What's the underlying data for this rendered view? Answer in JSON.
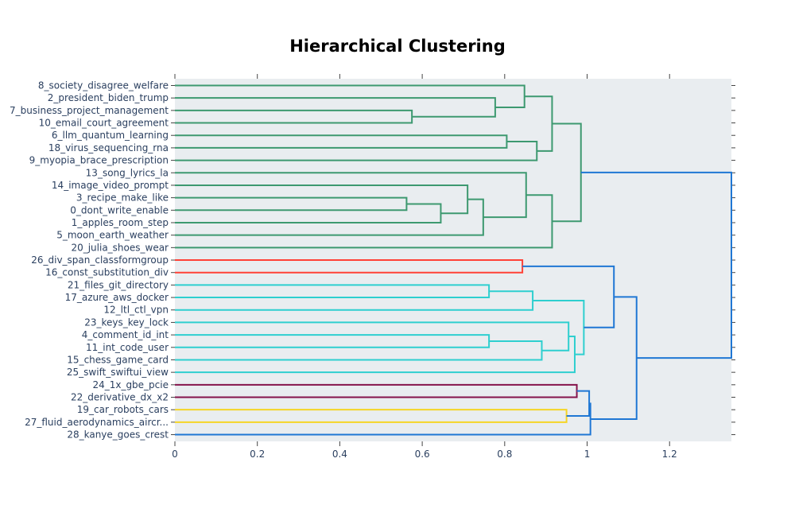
{
  "chart_data": {
    "type": "dendrogram",
    "title": "Hierarchical Clustering",
    "xlabel": "",
    "ylabel": "",
    "xlim": [
      0,
      1.35
    ],
    "x_ticks": [
      0,
      0.2,
      0.4,
      0.6,
      0.8,
      1,
      1.2
    ],
    "x_tick_labels": [
      "0",
      "0.2",
      "0.4",
      "0.6",
      "0.8",
      "1",
      "1.2"
    ],
    "grid": false,
    "plot_background": "#e9edf0",
    "leaves": [
      "8_society_disagree_welfare",
      "2_president_biden_trump",
      "7_business_project_management",
      "10_email_court_agreement",
      "6_llm_quantum_learning",
      "18_virus_sequencing_rna",
      "9_myopia_brace_prescription",
      "13_song_lyrics_la",
      "14_image_video_prompt",
      "3_recipe_make_like",
      "0_dont_write_enable",
      "1_apples_room_step",
      "5_moon_earth_weather",
      "20_julia_shoes_wear",
      "26_div_span_classformgroup",
      "16_const_substitution_div",
      "21_files_git_directory",
      "17_azure_aws_docker",
      "12_ltl_ctl_vpn",
      "23_keys_key_lock",
      "4_comment_id_int",
      "11_int_code_user",
      "15_chess_game_card",
      "25_swift_swiftui_view",
      "24_1x_gbe_pcie",
      "22_derivative_dx_x2",
      "19_car_robots_cars",
      "27_fluid_aerodynamics_aircr...",
      "28_kanye_goes_crest"
    ],
    "links": [
      {
        "a": 2,
        "b": 3,
        "h": 0.575,
        "color": "#3d9970"
      },
      {
        "a": 1,
        "b": "n0",
        "h": 0.777,
        "color": "#3d9970"
      },
      {
        "a": 0,
        "b": "n1",
        "h": 0.848,
        "color": "#3d9970"
      },
      {
        "a": 4,
        "b": 5,
        "h": 0.805,
        "color": "#3d9970"
      },
      {
        "a": "n3",
        "b": 6,
        "h": 0.878,
        "color": "#3d9970"
      },
      {
        "a": "n2",
        "b": "n4",
        "h": 0.915,
        "color": "#3d9970"
      },
      {
        "a": 9,
        "b": 10,
        "h": 0.562,
        "color": "#3d9970"
      },
      {
        "a": "n6",
        "b": 11,
        "h": 0.645,
        "color": "#3d9970"
      },
      {
        "a": 8,
        "b": "n7",
        "h": 0.71,
        "color": "#3d9970"
      },
      {
        "a": "n8",
        "b": 12,
        "h": 0.748,
        "color": "#3d9970"
      },
      {
        "a": 7,
        "b": "n9",
        "h": 0.852,
        "color": "#3d9970"
      },
      {
        "a": "n10",
        "b": 13,
        "h": 0.915,
        "color": "#3d9970"
      },
      {
        "a": "n5",
        "b": "n11",
        "h": 0.985,
        "color": "#3d9970"
      },
      {
        "a": 14,
        "b": 15,
        "h": 0.843,
        "color": "#ff4136"
      },
      {
        "a": 16,
        "b": 17,
        "h": 0.762,
        "color": "#2ecfcf"
      },
      {
        "a": "n14",
        "b": 18,
        "h": 0.868,
        "color": "#2ecfcf"
      },
      {
        "a": 20,
        "b": 21,
        "h": 0.762,
        "color": "#2ecfcf"
      },
      {
        "a": "n16",
        "b": 22,
        "h": 0.89,
        "color": "#2ecfcf"
      },
      {
        "a": 19,
        "b": "n17",
        "h": 0.955,
        "color": "#2ecfcf"
      },
      {
        "a": "n18",
        "b": 23,
        "h": 0.97,
        "color": "#2ecfcf"
      },
      {
        "a": "n15",
        "b": "n19",
        "h": 0.992,
        "color": "#2ecfcf"
      },
      {
        "a": "n13",
        "b": "n20",
        "h": 1.065,
        "color": "#1f77d4"
      },
      {
        "a": 24,
        "b": 25,
        "h": 0.975,
        "color": "#85144b"
      },
      {
        "a": 26,
        "b": 27,
        "h": 0.95,
        "color": "#f5d526"
      },
      {
        "a": "n22",
        "b": "n23",
        "h": 1.005,
        "color": "#1f77d4"
      },
      {
        "a": "n24",
        "b": 28,
        "h": 1.008,
        "color": "#1f77d4"
      },
      {
        "a": "n21",
        "b": "n25",
        "h": 1.12,
        "color": "#1f77d4"
      },
      {
        "a": "n12",
        "b": "n26",
        "h": 1.35,
        "color": "#1f77d4"
      }
    ]
  }
}
